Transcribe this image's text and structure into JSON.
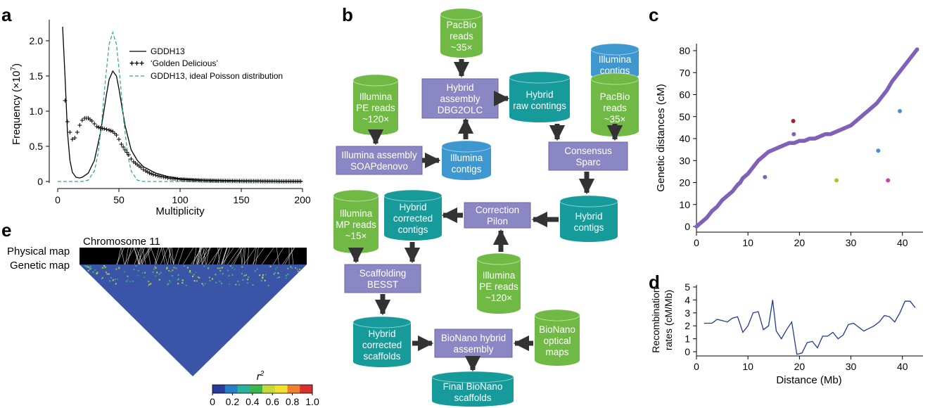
{
  "panels": {
    "a": "a",
    "b": "b",
    "c": "c",
    "d": "d",
    "e": "e"
  },
  "colors": {
    "purple_box": "#8b86c4",
    "green_cyl": "#6fb944",
    "blue_cyl": "#3f97cf",
    "teal_cyl": "#179a9a",
    "arrow": "#333333",
    "scatter": "#8060b8",
    "recomb_line": "#1f3a8f",
    "poisson": "#3aa89c"
  },
  "flowchart": {
    "pacbio_top": [
      "PacBio",
      "reads",
      "~35×"
    ],
    "illumina_pe_top": [
      "Illumina",
      "PE reads",
      "~120×"
    ],
    "hybrid_assembly": [
      "Hybrid",
      "assembly",
      "DBG2OLC"
    ],
    "hybrid_raw": [
      "Hybrid",
      "raw contings"
    ],
    "illumina_contigs_top": [
      "Illumina",
      "contigs"
    ],
    "pacbio_right": [
      "PacBio",
      "reads",
      "~35×"
    ],
    "illumina_assembly": [
      "Illumina assembly",
      "SOAPdenovo"
    ],
    "illumina_contigs_mid": [
      "Illumina",
      "contigs"
    ],
    "consensus": [
      "Consensus",
      "Sparc"
    ],
    "hybrid_contigs": [
      "Hybrid",
      "contigs"
    ],
    "correction": [
      "Correction",
      "Pilon"
    ],
    "illumina_mp": [
      "Illumina",
      "MP reads",
      "~15×"
    ],
    "hybrid_corrected_contigs": [
      "Hybrid",
      "corrected",
      "contigs"
    ],
    "illumina_pe_bottom": [
      "Illumina",
      "PE reads",
      "~120×"
    ],
    "scaffolding": [
      "Scaffolding",
      "BESST"
    ],
    "hybrid_corrected_scaffolds": [
      "Hybrid",
      "corrected",
      "scaffolds"
    ],
    "bionano_hybrid": [
      "BioNano hybrid",
      "assembly"
    ],
    "bionano_maps": [
      "BioNano",
      "optical",
      "maps"
    ],
    "final": [
      "Final BioNano",
      "scaffolds"
    ]
  },
  "panel_e": {
    "chromosome": "Chromosome 11",
    "physical_map": "Physical map",
    "genetic_map": "Genetic map",
    "colorbar_label": "r",
    "colorbar_sup": "2",
    "colorbar_ticks": [
      "0",
      "0.2",
      "0.4",
      "0.6",
      "0.8",
      "1.0"
    ]
  },
  "chart_data": [
    {
      "panel": "a",
      "type": "line",
      "xlabel": "Multiplicity",
      "ylabel": "Frequency (×10",
      "ylabel_sup": "7",
      "ylabel_end": ")",
      "xlim": [
        0,
        200
      ],
      "ylim": [
        0,
        2.2
      ],
      "xticks": [
        0,
        50,
        100,
        150,
        200
      ],
      "yticks": [
        0,
        0.5,
        1.0,
        1.5,
        2.0
      ],
      "ytick_labels": [
        "0",
        "0.5",
        "1.0",
        "1.5",
        "2.0"
      ],
      "legend": [
        "GDDH13",
        "‘Golden Delicious’",
        "GDDH13, ideal Poisson distribution"
      ],
      "series": [
        {
          "name": "GDDH13",
          "x": [
            4,
            6,
            8,
            10,
            12,
            15,
            18,
            20,
            25,
            30,
            35,
            40,
            42,
            45,
            48,
            50,
            55,
            60,
            65,
            70,
            80,
            90,
            100,
            120,
            150,
            200
          ],
          "values": [
            2.2,
            1.5,
            0.7,
            0.3,
            0.13,
            0.06,
            0.05,
            0.06,
            0.12,
            0.3,
            0.7,
            1.25,
            1.45,
            1.57,
            1.5,
            1.32,
            0.8,
            0.45,
            0.3,
            0.21,
            0.12,
            0.07,
            0.04,
            0.02,
            0.01,
            0.0
          ]
        },
        {
          "name": "‘Golden Delicious’",
          "x": [
            6,
            8,
            10,
            12,
            14,
            16,
            18,
            20,
            22,
            25,
            28,
            30,
            32,
            35,
            38,
            40,
            42,
            45,
            48,
            50,
            52,
            55,
            58,
            60,
            62,
            65,
            68,
            70,
            72,
            75,
            78,
            80,
            82,
            85,
            88,
            90,
            92,
            95,
            98,
            100,
            105,
            110,
            115,
            120,
            125,
            130,
            140,
            150,
            160,
            170,
            180,
            190,
            200
          ],
          "values": [
            1.15,
            0.85,
            0.7,
            0.6,
            0.62,
            0.7,
            0.8,
            0.87,
            0.9,
            0.9,
            0.86,
            0.82,
            0.78,
            0.76,
            0.75,
            0.74,
            0.73,
            0.71,
            0.66,
            0.6,
            0.53,
            0.45,
            0.38,
            0.32,
            0.28,
            0.24,
            0.2,
            0.17,
            0.15,
            0.12,
            0.1,
            0.09,
            0.08,
            0.07,
            0.06,
            0.05,
            0.045,
            0.04,
            0.035,
            0.03,
            0.025,
            0.02,
            0.017,
            0.015,
            0.012,
            0.01,
            0.008,
            0.006,
            0.005,
            0.004,
            0.003,
            0.002,
            0.002
          ]
        },
        {
          "name": "GDDH13, ideal Poisson distribution",
          "x": [
            20,
            25,
            30,
            33,
            36,
            39,
            42,
            45,
            48,
            51,
            54,
            57,
            60,
            65,
            70,
            75
          ],
          "values": [
            0.0,
            0.02,
            0.15,
            0.4,
            0.85,
            1.45,
            1.95,
            2.12,
            1.95,
            1.45,
            0.85,
            0.4,
            0.15,
            0.02,
            0.0,
            0.0
          ]
        }
      ]
    },
    {
      "panel": "c",
      "type": "scatter",
      "xlabel": "",
      "ylabel": "Genetic distances (cM)",
      "xlim": [
        0,
        44
      ],
      "ylim": [
        0,
        85
      ],
      "xticks": [
        0,
        10,
        20,
        30,
        40
      ],
      "yticks": [
        0,
        10,
        20,
        30,
        40,
        50,
        60,
        70,
        80
      ],
      "points_main": [
        [
          0,
          0
        ],
        [
          1,
          2
        ],
        [
          2,
          4
        ],
        [
          3,
          7
        ],
        [
          4,
          9
        ],
        [
          5,
          12
        ],
        [
          6,
          14
        ],
        [
          7,
          16
        ],
        [
          8,
          19
        ],
        [
          8.5,
          20
        ],
        [
          9,
          22
        ],
        [
          10,
          24
        ],
        [
          11,
          27
        ],
        [
          12,
          30
        ],
        [
          13,
          32
        ],
        [
          14,
          34
        ],
        [
          15,
          35
        ],
        [
          16,
          36
        ],
        [
          17,
          37
        ],
        [
          18,
          38
        ],
        [
          19,
          38
        ],
        [
          20,
          39
        ],
        [
          21,
          39
        ],
        [
          22,
          40
        ],
        [
          23,
          40
        ],
        [
          24,
          41
        ],
        [
          25,
          42
        ],
        [
          26,
          42
        ],
        [
          27,
          43
        ],
        [
          28,
          44
        ],
        [
          29,
          45
        ],
        [
          30,
          46
        ],
        [
          31,
          48
        ],
        [
          32,
          50
        ],
        [
          33,
          52
        ],
        [
          34,
          54
        ],
        [
          35,
          56
        ],
        [
          36,
          59
        ],
        [
          37,
          62
        ],
        [
          38,
          66
        ],
        [
          39,
          69
        ],
        [
          40,
          72
        ],
        [
          41,
          75
        ],
        [
          42,
          78
        ],
        [
          43,
          81
        ]
      ],
      "points_outliers": [
        {
          "x": 18.8,
          "y": 48,
          "color": "#b01c2e"
        },
        {
          "x": 39.5,
          "y": 52.5,
          "color": "#4a8ed0"
        },
        {
          "x": 35.3,
          "y": 34.5,
          "color": "#4a8ed0"
        },
        {
          "x": 27.2,
          "y": 21,
          "color": "#9cc83a"
        },
        {
          "x": 37.2,
          "y": 21,
          "color": "#d040a0"
        },
        {
          "x": 13.3,
          "y": 22.5,
          "color": "#8060b8"
        },
        {
          "x": 18.9,
          "y": 42,
          "color": "#8060b8"
        }
      ]
    },
    {
      "panel": "d",
      "type": "line",
      "xlabel": "Distance (Mb)",
      "ylabel": "Recombination rates (cM/Mb)",
      "ylabel_lines": [
        "Recombination",
        "rates (cM/Mb)"
      ],
      "xlim": [
        0,
        44
      ],
      "ylim": [
        0,
        5
      ],
      "xticks": [
        0,
        10,
        20,
        30,
        40
      ],
      "yticks": [
        0,
        1,
        2,
        3,
        4,
        5
      ],
      "x": [
        1.5,
        3,
        4,
        5,
        6,
        7,
        8,
        9,
        10,
        11,
        12,
        13,
        14,
        14.8,
        15.5,
        16.5,
        17.5,
        18.5,
        19.5,
        20.5,
        21.5,
        22.5,
        23.5,
        24.5,
        25.5,
        26.5,
        27.5,
        28.5,
        29.5,
        30.5,
        31.5,
        32.5,
        33.5,
        34.5,
        35.5,
        36.5,
        37.5,
        38.5,
        39.5,
        40.5,
        41.5,
        42.5
      ],
      "values": [
        2.2,
        2.2,
        2.5,
        2.4,
        2.3,
        2.6,
        2.7,
        1.5,
        2.0,
        3.0,
        3.1,
        1.7,
        2.0,
        4.0,
        1.6,
        1.0,
        1.7,
        2.3,
        -0.2,
        -0.1,
        0.7,
        0.8,
        0.3,
        1.2,
        1.2,
        1.5,
        1.0,
        1.3,
        2.1,
        2.2,
        1.9,
        1.6,
        1.8,
        2.0,
        2.3,
        2.8,
        2.7,
        2.3,
        3.0,
        3.9,
        3.9,
        3.4
      ]
    }
  ]
}
